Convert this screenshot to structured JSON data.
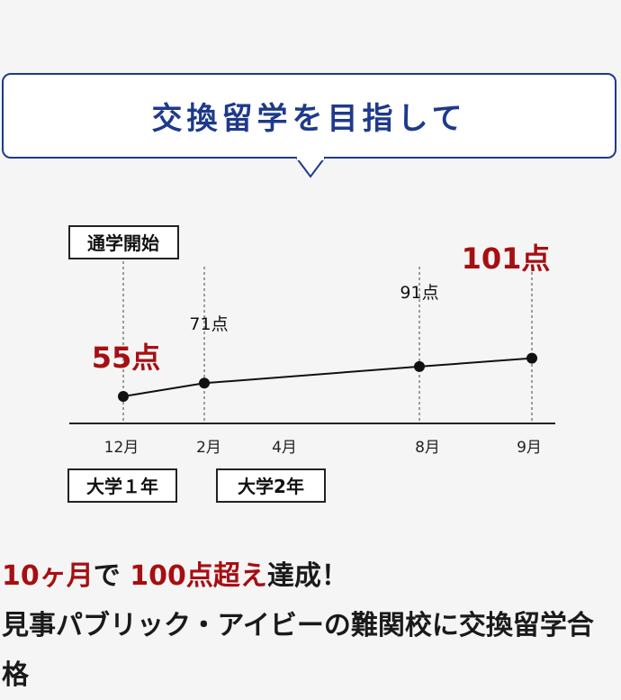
{
  "header": {
    "title": "交換留学を目指して"
  },
  "chart_data": {
    "type": "line",
    "x": [
      "12月",
      "2月",
      "8月",
      "9月"
    ],
    "values": [
      55,
      71,
      91,
      101
    ],
    "point_labels": [
      "55点",
      "71点",
      "91点",
      "101点"
    ],
    "xaxis_ticks": [
      "12月",
      "2月",
      "4月",
      "8月",
      "9月"
    ],
    "milestones": [
      {
        "label": "通学開始"
      },
      {
        "label": "大学１年"
      },
      {
        "label": "大学2年"
      }
    ],
    "colors": {
      "line": "#111111",
      "highlight": "#a60f12"
    }
  },
  "summary": {
    "part1": "10ヶ月",
    "part2": "で ",
    "part3": "100点超え",
    "part4": "達成！",
    "line2": "見事パブリック・アイビーの難関校に交換留学合格"
  },
  "theme": {
    "accent": "#1e3a8a",
    "red": "#a60f12"
  }
}
